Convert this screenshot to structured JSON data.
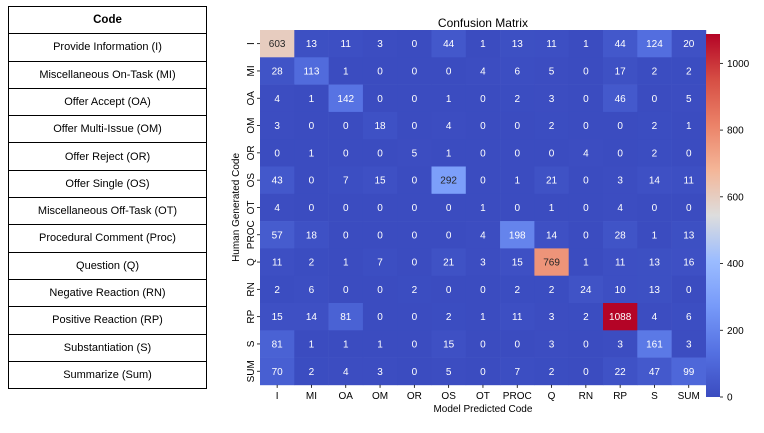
{
  "legend_table": {
    "header": "Code",
    "rows": [
      "Provide Information (I)",
      "Miscellaneous On-Task (MI)",
      "Offer Accept (OA)",
      "Offer Multi-Issue (OM)",
      "Offer Reject (OR)",
      "Offer Single (OS)",
      "Miscellaneous Off-Task (OT)",
      "Procedural Comment (Proc)",
      "Question (Q)",
      "Negative Reaction (RN)",
      "Positive Reaction (RP)",
      "Substantiation (S)",
      "Summarize (Sum)"
    ]
  },
  "chart_data": {
    "type": "heatmap",
    "title": "Confusion Matrix",
    "xlabel": "Model Predicted Code",
    "ylabel": "Human Generated Code",
    "x_categories": [
      "I",
      "MI",
      "OA",
      "OM",
      "OR",
      "OS",
      "OT",
      "PROC",
      "Q",
      "RN",
      "RP",
      "S",
      "SUM"
    ],
    "y_categories": [
      "I",
      "MI",
      "OA",
      "OM",
      "OR",
      "OS",
      "OT",
      "PROC",
      "Q",
      "RN",
      "RP",
      "S",
      "SUM"
    ],
    "values": [
      [
        603,
        13,
        11,
        3,
        0,
        44,
        1,
        13,
        11,
        1,
        44,
        124,
        20
      ],
      [
        28,
        113,
        1,
        0,
        0,
        0,
        4,
        6,
        5,
        0,
        17,
        2,
        2
      ],
      [
        4,
        1,
        142,
        0,
        0,
        1,
        0,
        2,
        3,
        0,
        46,
        0,
        5
      ],
      [
        3,
        0,
        0,
        18,
        0,
        4,
        0,
        0,
        2,
        0,
        0,
        2,
        1
      ],
      [
        0,
        1,
        0,
        0,
        5,
        1,
        0,
        0,
        0,
        4,
        0,
        2,
        0
      ],
      [
        43,
        0,
        7,
        15,
        0,
        292,
        0,
        1,
        21,
        0,
        3,
        14,
        11
      ],
      [
        4,
        0,
        0,
        0,
        0,
        0,
        1,
        0,
        1,
        0,
        4,
        0,
        0
      ],
      [
        57,
        18,
        0,
        0,
        0,
        0,
        4,
        198,
        14,
        0,
        28,
        1,
        13
      ],
      [
        11,
        2,
        1,
        7,
        0,
        21,
        3,
        15,
        769,
        1,
        11,
        13,
        16
      ],
      [
        2,
        6,
        0,
        0,
        2,
        0,
        0,
        2,
        2,
        24,
        10,
        13,
        0
      ],
      [
        15,
        14,
        81,
        0,
        0,
        2,
        1,
        11,
        3,
        2,
        1088,
        4,
        6
      ],
      [
        81,
        1,
        1,
        1,
        0,
        15,
        0,
        0,
        3,
        0,
        3,
        161,
        3
      ],
      [
        70,
        2,
        4,
        3,
        0,
        5,
        0,
        7,
        2,
        0,
        22,
        47,
        99
      ]
    ],
    "vmin": 0,
    "vmax": 1088,
    "colormap": "coolwarm",
    "colorbar_ticks": [
      0,
      200,
      400,
      600,
      800,
      1000
    ],
    "colorbar_tick_labels": [
      "0",
      "200",
      "400",
      "600",
      "800",
      "1000"
    ]
  }
}
